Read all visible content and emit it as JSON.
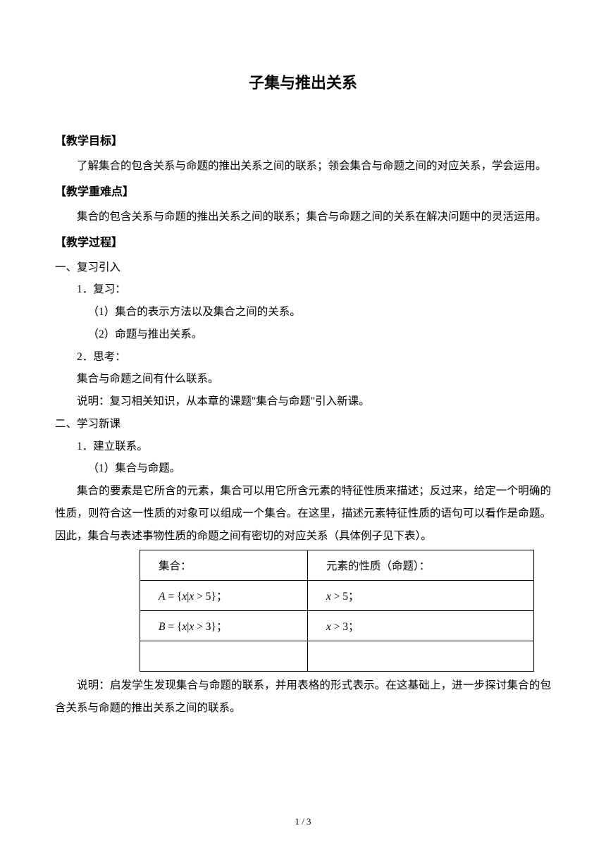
{
  "title": "子集与推出关系",
  "sections": {
    "s1": {
      "header": "【教学目标】",
      "p1": "了解集合的包含关系与命题的推出关系之间的联系；领会集合与命题之间的对应关系，学会运用。"
    },
    "s2": {
      "header": "【教学重难点】",
      "p1": "集合的包含关系与命题的推出关系之间的联系；集合与命题之间的关系在解决问题中的灵活运用。"
    },
    "s3": {
      "header": "【教学过程】",
      "l1": "一、复习引入",
      "l2": "1．复习：",
      "l3": "（1）集合的表示方法以及集合之间的关系。",
      "l4": "（2）命题与推出关系。",
      "l5": "2．思考：",
      "l6": "集合与命题之间有什么联系。",
      "l7": "说明：复习相关知识，从本章的课题\"集合与命题\"引入新课。",
      "l8": "二、学习新课",
      "l9": "1．建立联系。",
      "l10": "（1）集合与命题。",
      "p1": "集合的要素是它所含的元素，集合可以用它所含元素的特征性质来描述；反过来，给定一个明确的性质，则符合这一性质的对象可以组成一个集合。在这里，描述元素特征性质的语句可以看作是命题。因此，集合与表述事物性质的命题之间有密切的对应关系（具体例子见下表）。",
      "p2": "说明：启发学生发现集合与命题的联系，并用表格的形式表示。在这基础上，进一步探讨集合的包含关系与命题的推出关系之间的联系。"
    },
    "table": {
      "h1": "集合：",
      "h2": "元素的性质（命题）：",
      "r1c1": "A = { x | x > 5 } ；",
      "r1c2": "x > 5 ；",
      "r2c1": "B = { x | x > 3 } ；",
      "r2c2": "x > 3 ；"
    }
  },
  "pageNum": "1 / 3"
}
